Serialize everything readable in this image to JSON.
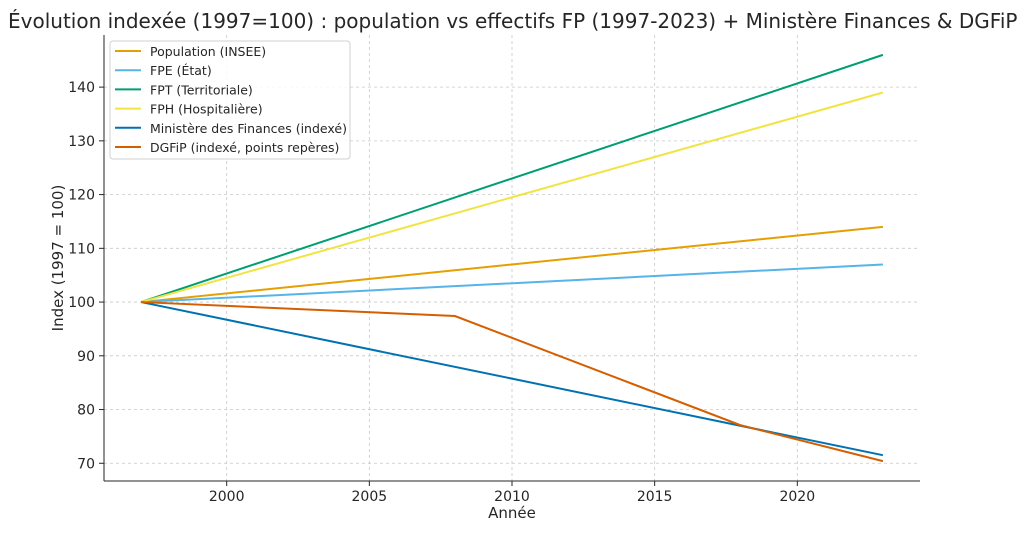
{
  "chart_data": {
    "type": "line",
    "title": "Évolution indexée (1997=100) : population vs effectifs FP (1997-2023) + Ministère Finances & DGFiP",
    "xlabel": "Année",
    "ylabel": "Index (1997 = 100)",
    "xlim": [
      1995.7,
      2024.3
    ],
    "ylim": [
      66.7,
      149.7
    ],
    "xticks": [
      2000,
      2005,
      2010,
      2015,
      2020
    ],
    "yticks": [
      70,
      80,
      90,
      100,
      110,
      120,
      130,
      140
    ],
    "grid": true,
    "legend_position": "top-left",
    "series": [
      {
        "name": "Population (INSEE)",
        "color": "#E69F00",
        "x": [
          1997,
          2023
        ],
        "y": [
          100,
          114
        ]
      },
      {
        "name": "FPE (État)",
        "color": "#56B4E9",
        "x": [
          1997,
          2023
        ],
        "y": [
          100,
          107
        ]
      },
      {
        "name": "FPT (Territoriale)",
        "color": "#009E73",
        "x": [
          1997,
          2023
        ],
        "y": [
          100,
          146
        ]
      },
      {
        "name": "FPH (Hospitalière)",
        "color": "#F0E442",
        "x": [
          1997,
          2023
        ],
        "y": [
          100,
          139
        ]
      },
      {
        "name": "Ministère des Finances (indexé)",
        "color": "#0072B2",
        "x": [
          1997,
          2023
        ],
        "y": [
          100,
          71.5
        ]
      },
      {
        "name": "DGFiP (indexé, points repères)",
        "color": "#D55E00",
        "x": [
          1997,
          2008,
          2018,
          2023
        ],
        "y": [
          100,
          97.4,
          77.1,
          70.4
        ]
      }
    ]
  }
}
